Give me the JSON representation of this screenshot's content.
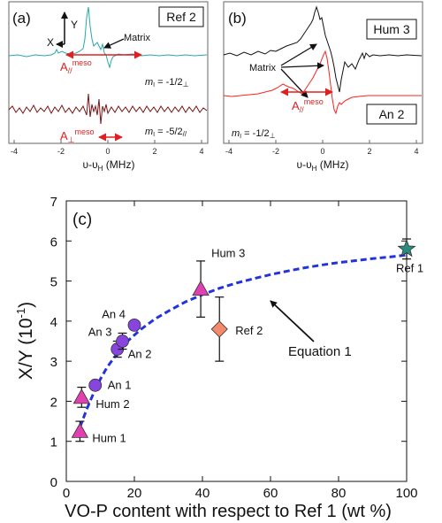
{
  "panel_a": {
    "label": "(a)",
    "box_label": "Ref 2",
    "x_label": "υ-υ",
    "x_label_sub": "H",
    "x_label_unit": " (MHz)",
    "axis_x": "X",
    "axis_y": "Y",
    "matrix": "Matrix",
    "a_par_main": "A",
    "a_par_sub": "//",
    "a_par_sup": "meso",
    "a_perp_main": "A",
    "a_perp_sub": "⊥",
    "a_perp_sup": "meso",
    "ml1_main": "m",
    "ml1_sub": "I",
    "ml1_rest": " = -1/2",
    "ml1_tail": "⊥",
    "ml2_main": "m",
    "ml2_sub": "I",
    "ml2_rest": " = -5/2",
    "ml2_tail": "//"
  },
  "panel_b": {
    "label": "(b)",
    "box_top": "Hum 3",
    "box_bottom": "An 2",
    "x_label": "υ-υ",
    "x_label_sub": "H",
    "x_label_unit": " (MHz)",
    "matrix": "Matrix",
    "a_par_main": "A",
    "a_par_sub": "//",
    "a_par_sup": "meso",
    "ml_main": "m",
    "ml_sub": "I",
    "ml_rest": " = -1/2",
    "ml_tail": "⊥"
  },
  "panel_c": {
    "label": "(c)",
    "ylabel_main": "X/Y (10",
    "ylabel_sup": "-1",
    "ylabel_end": ")",
    "xlabel": "VO-P content with respect to Ref 1 (wt %)",
    "equation_label": "Equation 1"
  },
  "chart_data": [
    {
      "panel": "a",
      "type": "line",
      "xlabel": "υ-υH (MHz)",
      "xlim": [
        -4,
        4
      ],
      "x_ticks": [
        "-4",
        "-2",
        "0",
        "2",
        "4"
      ],
      "series": [
        {
          "label": "mI = -1/2⊥"
        },
        {
          "label": "mI = -5/2//"
        }
      ],
      "colors": {
        "top": "#2aa7a7",
        "bottom": "#7a1414",
        "arrow": "#e02020"
      }
    },
    {
      "panel": "b",
      "type": "line",
      "xlabel": "υ-υH (MHz)",
      "xlim": [
        -4,
        4
      ],
      "x_ticks": [
        "-4",
        "-2",
        "0",
        "2",
        "4"
      ],
      "series": [
        {
          "name": "Hum 3"
        },
        {
          "name": "An 2"
        }
      ],
      "colors": {
        "Hum 3": "#111111",
        "An 2": "#ff2020",
        "arrow": "#e02020"
      }
    },
    {
      "panel": "c",
      "type": "scatter",
      "xlabel": "VO-P content with respect to Ref 1 (wt %)",
      "ylabel": "X/Y (10-1)",
      "xlim": [
        0,
        100
      ],
      "ylim": [
        0,
        7
      ],
      "x_ticks": [
        "0",
        "20",
        "40",
        "60",
        "80",
        "100"
      ],
      "y_ticks": [
        "0",
        "1",
        "2",
        "3",
        "4",
        "5",
        "6",
        "7"
      ],
      "points": [
        {
          "name": "Hum 1",
          "x": 4,
          "y": 1.25,
          "err": 0.25,
          "marker": "triangle",
          "color": "#e040b0"
        },
        {
          "name": "Hum 2",
          "x": 4.5,
          "y": 2.1,
          "err": 0.25,
          "marker": "triangle",
          "color": "#e040b0"
        },
        {
          "name": "An 1",
          "x": 8.5,
          "y": 2.4,
          "err": 0,
          "marker": "circle",
          "color": "#8844dd"
        },
        {
          "name": "An 2",
          "x": 15,
          "y": 3.3,
          "err": 0.2,
          "marker": "circle",
          "color": "#8844dd"
        },
        {
          "name": "An 3",
          "x": 16.5,
          "y": 3.5,
          "err": 0.2,
          "marker": "circle",
          "color": "#8844dd"
        },
        {
          "name": "An 4",
          "x": 20,
          "y": 3.9,
          "err": 0,
          "marker": "circle",
          "color": "#8844dd"
        },
        {
          "name": "Hum 3",
          "x": 39.5,
          "y": 4.8,
          "err": 0.7,
          "marker": "triangle",
          "color": "#e040b0"
        },
        {
          "name": "Ref 2",
          "x": 45,
          "y": 3.8,
          "err": 0.8,
          "marker": "diamond",
          "color": "#f58a6a"
        },
        {
          "name": "Ref 1",
          "x": 100,
          "y": 5.8,
          "err": 0.25,
          "marker": "star",
          "color": "#2a8a80"
        }
      ],
      "fit": {
        "name": "Equation 1",
        "color": "#2233dd",
        "x": [
          4,
          6,
          8,
          10,
          12,
          15,
          18,
          22,
          26,
          30,
          35,
          40,
          45,
          50,
          55,
          60,
          65,
          70,
          75,
          80,
          85,
          90,
          95,
          100
        ],
        "y": [
          1.35,
          1.8,
          2.2,
          2.55,
          2.85,
          3.2,
          3.5,
          3.8,
          4.05,
          4.25,
          4.48,
          4.66,
          4.82,
          4.95,
          5.06,
          5.16,
          5.25,
          5.33,
          5.4,
          5.46,
          5.51,
          5.56,
          5.6,
          5.65
        ]
      }
    }
  ]
}
